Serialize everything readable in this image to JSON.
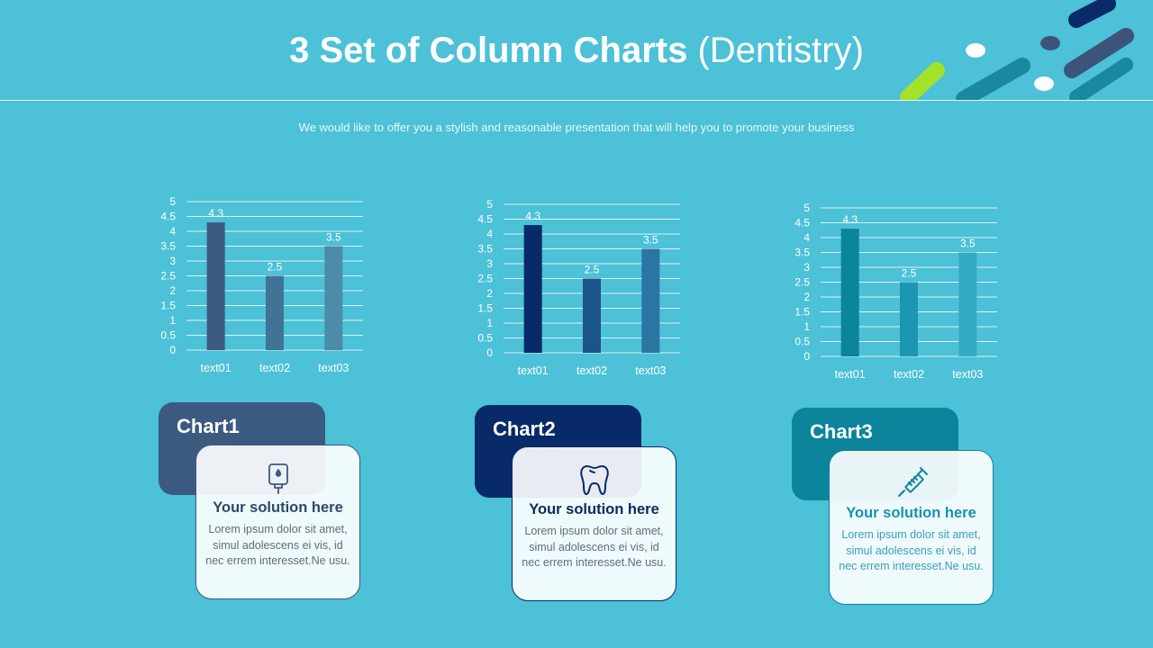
{
  "header": {
    "title_bold": "3 Set of Column Charts",
    "title_light": "(Dentistry)",
    "subtitle": "We would like to offer you a stylish and reasonable presentation that will help you to promote your business"
  },
  "colors": {
    "background": "#4cc1d7",
    "chart1": [
      "#3c5a80",
      "#3f7497",
      "#4a8ca9"
    ],
    "chart2": [
      "#082a68",
      "#1b5489",
      "#2c74a1"
    ],
    "chart3": [
      "#0c849c",
      "#1c97b3",
      "#34abc6"
    ]
  },
  "chart_data": [
    {
      "type": "bar",
      "categories": [
        "text01",
        "text02",
        "text03"
      ],
      "values": [
        4.3,
        2.5,
        3.5
      ],
      "ylim": [
        0,
        5
      ],
      "yticks": [
        "0",
        "0.5",
        "1",
        "1.5",
        "2",
        "2.5",
        "3",
        "3.5",
        "4",
        "4.5",
        "5"
      ],
      "grid": true
    },
    {
      "type": "bar",
      "categories": [
        "text01",
        "text02",
        "text03"
      ],
      "values": [
        4.3,
        2.5,
        3.5
      ],
      "ylim": [
        0,
        5
      ],
      "yticks": [
        "0",
        "0.5",
        "1",
        "1.5",
        "2",
        "2.5",
        "3",
        "3.5",
        "4",
        "4.5",
        "5"
      ],
      "grid": true
    },
    {
      "type": "bar",
      "categories": [
        "text01",
        "text02",
        "text03"
      ],
      "values": [
        4.3,
        2.5,
        3.5
      ],
      "ylim": [
        0,
        5
      ],
      "yticks": [
        "0",
        "0.5",
        "1",
        "1.5",
        "2",
        "2.5",
        "3",
        "3.5",
        "4",
        "4.5",
        "5"
      ],
      "grid": true
    }
  ],
  "panels": [
    {
      "label": "Chart1",
      "icon": "saliva-ejector-icon",
      "heading": "Your solution here",
      "body": "Lorem ipsum dolor sit amet, simul adolescens ei vis, id nec errem interesset.Ne usu.",
      "tab_color": "#3c5a80",
      "heading_color": "#2d4866"
    },
    {
      "label": "Chart2",
      "icon": "tooth-icon",
      "heading": "Your solution here",
      "body": "Lorem ipsum dolor sit amet, simul adolescens ei vis, id nec errem interesset.Ne usu.",
      "tab_color": "#082a68",
      "heading_color": "#0b2a5c"
    },
    {
      "label": "Chart3",
      "icon": "syringe-icon",
      "heading": "Your solution here",
      "body": "Lorem ipsum dolor sit amet, simul adolescens ei vis, id nec errem interesset.Ne usu.",
      "tab_color": "#0c849c",
      "heading_color": "#1493ae"
    }
  ]
}
